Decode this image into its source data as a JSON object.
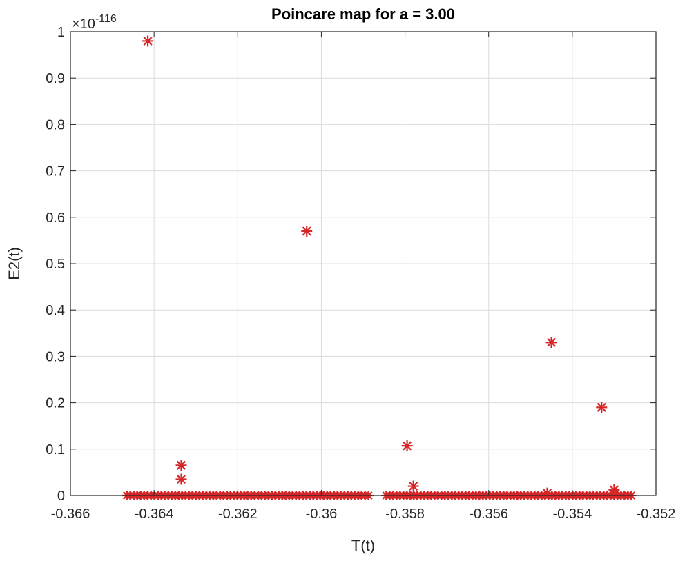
{
  "chart_data": {
    "type": "scatter",
    "title": "Poincare map for a = 3.00",
    "xlabel": "T(t)",
    "ylabel": "E2(t)",
    "y_exponent_label": "×10",
    "y_exponent": "-116",
    "xlim": [
      -0.366,
      -0.352
    ],
    "ylim": [
      0,
      1
    ],
    "x_ticks": [
      -0.366,
      -0.364,
      -0.362,
      -0.36,
      -0.358,
      -0.356,
      -0.354,
      -0.352
    ],
    "x_tick_labels": [
      "-0.366",
      "-0.364",
      "-0.362",
      "-0.36",
      "-0.358",
      "-0.356",
      "-0.354",
      "-0.352"
    ],
    "y_ticks": [
      0,
      0.1,
      0.2,
      0.3,
      0.4,
      0.5,
      0.6,
      0.7,
      0.8,
      0.9,
      1
    ],
    "y_tick_labels": [
      "0",
      "0.1",
      "0.2",
      "0.3",
      "0.4",
      "0.5",
      "0.6",
      "0.7",
      "0.8",
      "0.9",
      "1"
    ],
    "grid": true,
    "marker": "asterisk",
    "marker_color": "#d62728",
    "points": [
      {
        "x": -0.36415,
        "y": 0.98
      },
      {
        "x": -0.36035,
        "y": 0.57
      },
      {
        "x": -0.3545,
        "y": 0.33
      },
      {
        "x": -0.3533,
        "y": 0.19
      },
      {
        "x": -0.35795,
        "y": 0.107
      },
      {
        "x": -0.36335,
        "y": 0.065
      },
      {
        "x": -0.36335,
        "y": 0.035
      },
      {
        "x": -0.3578,
        "y": 0.02
      },
      {
        "x": -0.353,
        "y": 0.012
      },
      {
        "x": -0.3546,
        "y": 0.005
      }
    ],
    "baseline_band": {
      "y": 0,
      "segments": [
        [
          -0.36465,
          -0.3588
        ],
        [
          -0.35845,
          -0.35255
        ]
      ]
    }
  }
}
